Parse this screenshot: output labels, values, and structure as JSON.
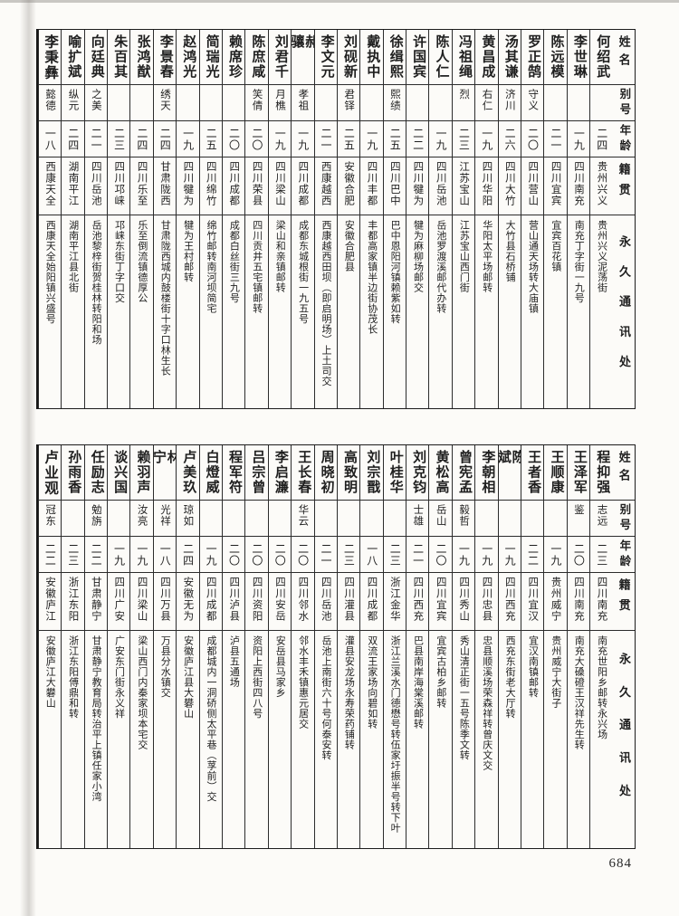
{
  "page": {
    "number": "684"
  },
  "colors": {
    "ink": "#1f1f1f",
    "paper": "#fcfbf8"
  },
  "table": {
    "column_headers": [
      "姓名",
      "别号",
      "年龄",
      "籍贯",
      "永久通讯处"
    ],
    "sections": [
      {
        "entries": [
          {
            "name": "何绍武",
            "byname": "",
            "age": "二四",
            "native_place": "贵州兴义",
            "address": "贵州兴义泥荡街"
          },
          {
            "name": "李世琳",
            "byname": "",
            "age": "一九",
            "native_place": "四川南充",
            "address": "南充丁字街一九号"
          },
          {
            "name": "陈远模",
            "byname": "",
            "age": "二一",
            "native_place": "四川宜宾",
            "address": "宜宾百花镇"
          },
          {
            "name": "罗正鹄",
            "byname": "守义",
            "age": "二〇",
            "native_place": "四川营山",
            "address": "营山通天场转大庙镇"
          },
          {
            "name": "汤其谦",
            "byname": "济川",
            "age": "二六",
            "native_place": "四川大竹",
            "address": "大竹县石桥铺"
          },
          {
            "name": "黄昌成",
            "byname": "右仁",
            "age": "一九",
            "native_place": "四川华阳",
            "address": "华阳太平场邮转"
          },
          {
            "name": "冯祖绳",
            "byname": "烈",
            "age": "二三",
            "native_place": "江苏宝山",
            "address": "江苏宝山西门街"
          },
          {
            "name": "陈人仁",
            "byname": "",
            "age": "一九",
            "native_place": "四川岳池",
            "address": "岳池罗渡溪邮代办转"
          },
          {
            "name": "许国宾",
            "byname": "",
            "age": "二二",
            "native_place": "四川犍为",
            "address": "犍为麻柳场邮交"
          },
          {
            "name": "徐缉熙",
            "byname": "熙绩",
            "age": "二五",
            "native_place": "四川巴中",
            "address": "巴中恩阳河镇赖紫如转"
          },
          {
            "name": "戴执中",
            "byname": "",
            "age": "一九",
            "native_place": "四川丰都",
            "address": "丰都高家镇半边街协茂长"
          },
          {
            "name": "刘砚新",
            "byname": "君铎",
            "age": "二五",
            "native_place": "安徽合肥",
            "address": "安徽合肥县"
          },
          {
            "name": "李文元",
            "byname": "",
            "age": "二一",
            "native_place": "西康越西",
            "address": "西康越西田坝（即启明场）上土司交"
          },
          {
            "name": "郝骧",
            "byname": "孝祖",
            "age": "一九",
            "native_place": "四川成都",
            "address": "成都东城根街一九五号"
          },
          {
            "name": "刘君千",
            "byname": "月樵",
            "age": "一九",
            "native_place": "四川梁山",
            "address": "梁山和亲镇邮转"
          },
          {
            "name": "陈庶咸",
            "byname": "笑倩",
            "age": "二〇",
            "native_place": "四川荣县",
            "address": "四川贡井五宅镇邮转"
          },
          {
            "name": "赖席珍",
            "byname": "",
            "age": "二〇",
            "native_place": "四川成都",
            "address": "成都白丝街三九号"
          },
          {
            "name": "简瑞光",
            "byname": "",
            "age": "二五",
            "native_place": "四川绵竹",
            "address": "绵竹邮转南河坝简宅"
          },
          {
            "name": "赵鸿光",
            "byname": "",
            "age": "一九",
            "native_place": "四川犍为",
            "address": "犍为王村邮转"
          },
          {
            "name": "李景春",
            "byname": "绣天",
            "age": "二四",
            "native_place": "甘肃陇西",
            "address": "甘肃陇西城内鼓楼街十字口林生长"
          },
          {
            "name": "张鸿猷",
            "byname": "",
            "age": "二四",
            "native_place": "四川乐至",
            "address": "乐至倒流镇德厚公"
          },
          {
            "name": "朱百其",
            "byname": "",
            "age": "二三",
            "native_place": "四川邛崃",
            "address": "邛崃东街丁字口交"
          },
          {
            "name": "向廷典",
            "byname": "之美",
            "age": "二一",
            "native_place": "四川岳池",
            "address": "岳池黎梓街贺桂林转阳和场"
          },
          {
            "name": "喻扩斌",
            "byname": "纵元",
            "age": "二四",
            "native_place": "湖南平江",
            "address": "湖南平江县北街"
          },
          {
            "name": "李秉彝",
            "byname": "懿德",
            "age": "一八",
            "native_place": "西康天全",
            "address": "西康天全始阳镇兴盛号",
            "emphasis": true
          }
        ]
      },
      {
        "entries": [
          {
            "name": "程抑强",
            "byname": "志远",
            "age": "二三",
            "native_place": "四川南充",
            "address": "南充世阳乡邮转永兴场"
          },
          {
            "name": "王泽军",
            "byname": "鉴",
            "age": "二〇",
            "native_place": "四川南充",
            "address": "南充大磉磴王汉祥先生转"
          },
          {
            "name": "王顺康",
            "byname": "",
            "age": "一九",
            "native_place": "贵州威宁",
            "address": "贵州威宁大街子"
          },
          {
            "name": "王者香",
            "byname": "",
            "age": "二二",
            "native_place": "四川宜汉",
            "address": "宜汉南镇邮转"
          },
          {
            "name": "陈斌",
            "byname": "",
            "age": "一九",
            "native_place": "四川西充",
            "address": "西充东街老大厅转"
          },
          {
            "name": "李朝相",
            "byname": "",
            "age": "一九",
            "native_place": "四川忠县",
            "address": "忠县顺溪场荣森祥转曾庆文交"
          },
          {
            "name": "曾宪孟",
            "byname": "毅哲",
            "age": "一九",
            "native_place": "四川秀山",
            "address": "秀山清正街一五号陈季文转"
          },
          {
            "name": "黄松高",
            "byname": "岳山",
            "age": "二〇",
            "native_place": "四川宜宾",
            "address": "宜宾古柏乡邮转"
          },
          {
            "name": "刘克钧",
            "byname": "士雄",
            "age": "二一",
            "native_place": "四川西充",
            "address": "巴县南岸海棠溪邮转"
          },
          {
            "name": "叶桂华",
            "byname": "",
            "age": "二三",
            "native_place": "浙江金华",
            "address": "浙江兰溪水门德懋号转伍家圩振半号转下叶"
          },
          {
            "name": "刘宗戬",
            "byname": "",
            "age": "一八",
            "native_place": "四川成都",
            "address": "双流王家场向碧如转"
          },
          {
            "name": "高致明",
            "byname": "",
            "age": "二三",
            "native_place": "四川灌县",
            "address": "灌县安龙场永寿荣药铺转"
          },
          {
            "name": "周晓初",
            "byname": "",
            "age": "二一",
            "native_place": "四川岳池",
            "address": "岳池上南街六十号何泰安转"
          },
          {
            "name": "王长春",
            "byname": "华云",
            "age": "二〇",
            "native_place": "四川邻水",
            "address": "邻水丰禾镇惠元居交"
          },
          {
            "name": "李启濂",
            "byname": "",
            "age": "二〇",
            "native_place": "四川安岳",
            "address": "安岳县马家乡"
          },
          {
            "name": "吕宗曾",
            "byname": "",
            "age": "二〇",
            "native_place": "四川资阳",
            "address": "资阳上西街四八号"
          },
          {
            "name": "程军符",
            "byname": "",
            "age": "二〇",
            "native_place": "四川泸县",
            "address": "泸县五通场"
          },
          {
            "name": "白燈威",
            "byname": "",
            "age": "一九",
            "native_place": "四川成都",
            "address": "成都城内一洞硚侧太平巷（莩前）交"
          },
          {
            "name": "卢美玖",
            "byname": "琼如",
            "age": "二四",
            "native_place": "安徽无为",
            "address": "安徽庐江县大礬山"
          },
          {
            "name": "林宁",
            "byname": "光祥",
            "age": "一八",
            "native_place": "四川万县",
            "address": "万县分水镇交"
          },
          {
            "name": "赖羽声",
            "byname": "汝亮",
            "age": "一九",
            "native_place": "四川梁山",
            "address": "梁山西门内秦家坝本宅交"
          },
          {
            "name": "谈兴国",
            "byname": "",
            "age": "一九",
            "native_place": "四川广安",
            "address": "广安东门街永义祥"
          },
          {
            "name": "任励志",
            "byname": "勉旃",
            "age": "二二",
            "native_place": "甘肃静宁",
            "address": "甘肃静宁教育局转治平上镇任家小湾"
          },
          {
            "name": "孙雨香",
            "byname": "",
            "age": "二三",
            "native_place": "浙江东阳",
            "address": "浙江东阳傅鼎和转"
          },
          {
            "name": "卢业观",
            "byname": "冠东",
            "age": "二二",
            "native_place": "安徽庐江",
            "address": "安徽庐江大礬山",
            "emphasis": true
          }
        ]
      }
    ]
  }
}
